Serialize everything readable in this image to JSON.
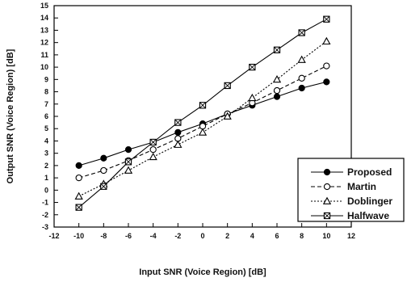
{
  "chart_data": {
    "type": "line",
    "xlabel": "Input SNR (Voice Region) [dB]",
    "ylabel": "Output SNR (Voice Region) [dB]",
    "xlim": [
      -12,
      12
    ],
    "ylim": [
      -3,
      15
    ],
    "xticks": [
      -12,
      -10,
      -8,
      -6,
      -4,
      -2,
      0,
      2,
      4,
      6,
      8,
      10,
      12
    ],
    "yticks": [
      -3,
      -2,
      -1,
      0,
      1,
      2,
      3,
      4,
      5,
      6,
      7,
      8,
      9,
      10,
      11,
      12,
      13,
      14,
      15
    ],
    "grid": false,
    "legend_position": "bottom-right",
    "x": [
      -10,
      -8,
      -6,
      -4,
      -2,
      0,
      2,
      4,
      6,
      8,
      10
    ],
    "series": [
      {
        "name": "Proposed",
        "marker": "filled-circle",
        "line": "solid",
        "values": [
          2.0,
          2.6,
          3.3,
          3.9,
          4.7,
          5.4,
          6.2,
          6.9,
          7.6,
          8.3,
          8.8
        ]
      },
      {
        "name": "Martin",
        "marker": "open-circle",
        "line": "dashed",
        "values": [
          1.0,
          1.6,
          2.4,
          3.3,
          4.2,
          5.2,
          6.2,
          7.1,
          8.1,
          9.1,
          10.1
        ]
      },
      {
        "name": "Doblinger",
        "marker": "open-triangle",
        "line": "dotted",
        "values": [
          -0.5,
          0.5,
          1.6,
          2.7,
          3.7,
          4.7,
          6.0,
          7.5,
          9.0,
          10.6,
          12.1
        ]
      },
      {
        "name": "Halfwave",
        "marker": "boxed-x",
        "line": "solid",
        "values": [
          -1.4,
          0.3,
          2.3,
          3.9,
          5.5,
          6.9,
          8.5,
          10.0,
          11.4,
          12.8,
          13.9
        ]
      }
    ]
  }
}
